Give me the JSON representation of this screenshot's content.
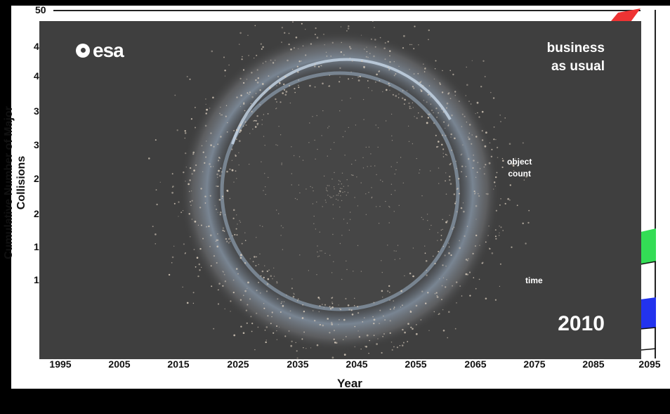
{
  "background_chart": {
    "y_axis_label": "Cumulative Number of Major Collisions",
    "y_ticks": [
      "50",
      "4",
      "4",
      "3",
      "3",
      "2",
      "2",
      "1",
      "1"
    ],
    "x_axis_label": "Year",
    "x_ticks": [
      "1995",
      "2005",
      "2015",
      "2025",
      "2035",
      "2045",
      "2055",
      "2065",
      "2075",
      "2085",
      "2095"
    ],
    "colors": {
      "red": "#ee3333",
      "green": "#33dd55",
      "blue": "#2233ee"
    }
  },
  "overlay": {
    "logo_text": "esa",
    "scenario_line1": "business",
    "scenario_line2": "as usual",
    "object_count_line1": "object",
    "object_count_line2": "count",
    "time_label": "time",
    "year": "2010"
  }
}
